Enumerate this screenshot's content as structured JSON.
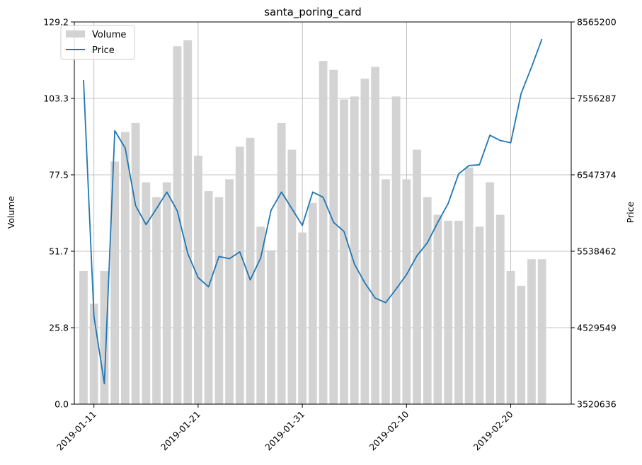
{
  "chart_data": {
    "type": "bar+line",
    "title": "santa_poring_card",
    "ylabel_left": "Volume",
    "ylabel_right": "Price",
    "grid": true,
    "legend_position": "upper-left",
    "x_start": "2019-01-10",
    "x_tick_labels": [
      "2019-01-11",
      "2019-01-21",
      "2019-01-31",
      "2019-02-10",
      "2019-02-20"
    ],
    "y_left_ticks": [
      "0.0",
      "25.8",
      "51.7",
      "77.5",
      "103.3",
      "129.2"
    ],
    "y_right_ticks": [
      "3520636",
      "4529549",
      "5538462",
      "6547374",
      "7556287",
      "8565200"
    ],
    "ylim_left": [
      0,
      129.2
    ],
    "ylim_right": [
      3520636,
      8565200
    ],
    "colors": {
      "volume": "#d3d3d3",
      "price": "#1f77b4"
    },
    "series": [
      {
        "name": "Volume",
        "kind": "bar",
        "values": [
          45,
          34,
          45,
          82,
          92,
          95,
          75,
          70,
          75,
          121,
          123,
          84,
          72,
          70,
          76,
          87,
          90,
          60,
          52,
          95,
          86,
          58,
          68,
          116,
          113,
          103,
          104,
          110,
          114,
          76,
          104,
          76,
          86,
          70,
          64,
          62,
          62,
          80,
          60,
          75,
          64,
          45,
          40,
          49,
          49
        ]
      },
      {
        "name": "Price",
        "kind": "line",
        "values": [
          7800000,
          4680000,
          3790000,
          7130000,
          6900000,
          6140000,
          5890000,
          6100000,
          6320000,
          6070000,
          5510000,
          5190000,
          5070000,
          5470000,
          5440000,
          5530000,
          5160000,
          5450000,
          6080000,
          6320000,
          6100000,
          5880000,
          6320000,
          6250000,
          5920000,
          5800000,
          5370000,
          5120000,
          4920000,
          4860000,
          5040000,
          5230000,
          5480000,
          5650000,
          5920000,
          6170000,
          6560000,
          6670000,
          6680000,
          7070000,
          7000000,
          6970000,
          7620000,
          7970000,
          8340000
        ]
      }
    ]
  }
}
